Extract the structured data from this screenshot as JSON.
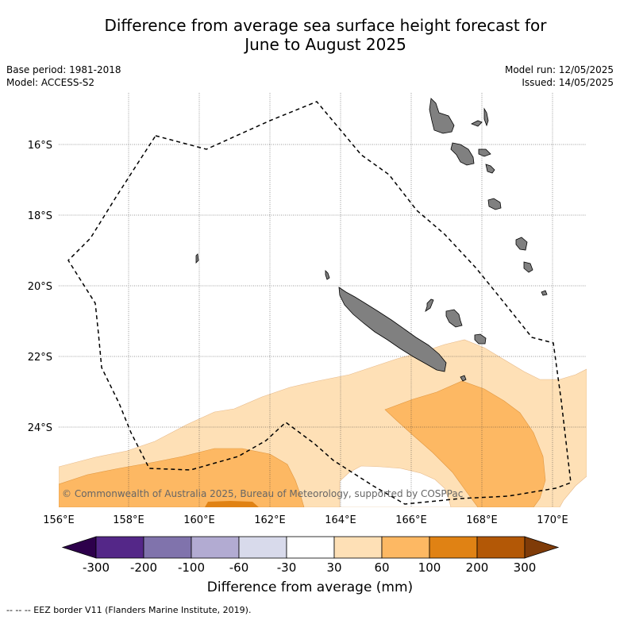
{
  "title_line1": "Difference from average sea surface height forecast for",
  "title_line2": "June to August 2025",
  "meta_left": [
    "Base period: 1981-2018",
    "Model: ACCESS-S2"
  ],
  "meta_right": [
    "Model run: 12/05/2025",
    "Issued: 14/05/2025"
  ],
  "latitudes": [
    "16°S",
    "18°S",
    "20°S",
    "22°S",
    "24°S"
  ],
  "longitudes": [
    "156°E",
    "158°E",
    "160°E",
    "162°E",
    "164°E",
    "166°E",
    "168°E",
    "170°E"
  ],
  "copyright": "© Commonwealth of Australia 2025, Bureau of Meteorology, supported by COSPPac",
  "colorbar": {
    "ticks": [
      "-300",
      "-200",
      "-100",
      "-60",
      "-30",
      "30",
      "60",
      "100",
      "200",
      "300"
    ],
    "colors": [
      "#2d004b",
      "#542788",
      "#8073ac",
      "#b2abd2",
      "#d8daeb",
      "#ffffff",
      "#fee0b6",
      "#fdb863",
      "#e08214",
      "#b35806",
      "#7f3b08"
    ],
    "label": "Difference from average (mm)"
  },
  "footer": "--  --  -- EEZ border V11 (Flanders Marine Institute, 2019).",
  "colors": {
    "land": "#808080",
    "c30_60": "#fee0b6",
    "c60_100": "#fdb863",
    "c100_200": "#e08214"
  }
}
